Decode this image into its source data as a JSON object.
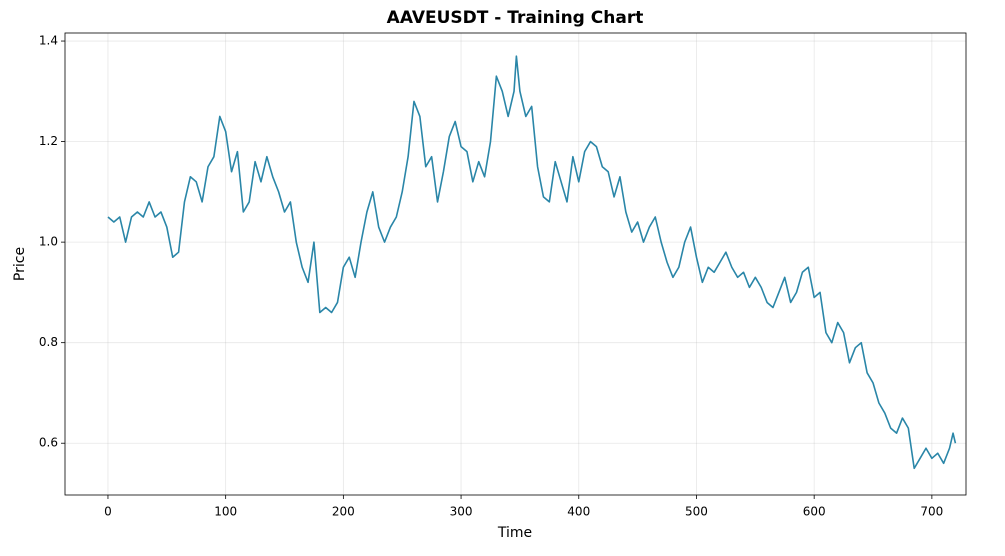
{
  "chart_data": {
    "type": "line",
    "title": "AAVEUSDT - Training Chart",
    "x_label": "Time",
    "y_label": "Price",
    "x": [
      0,
      5,
      10,
      15,
      20,
      25,
      30,
      35,
      40,
      45,
      50,
      55,
      60,
      65,
      70,
      75,
      80,
      85,
      90,
      95,
      100,
      105,
      110,
      115,
      120,
      125,
      130,
      135,
      140,
      145,
      150,
      155,
      160,
      165,
      170,
      175,
      180,
      185,
      190,
      195,
      200,
      205,
      210,
      215,
      220,
      225,
      230,
      235,
      240,
      245,
      250,
      255,
      260,
      265,
      270,
      275,
      280,
      285,
      290,
      295,
      300,
      305,
      310,
      315,
      320,
      325,
      330,
      335,
      340,
      345,
      347,
      350,
      355,
      360,
      365,
      370,
      375,
      380,
      385,
      390,
      395,
      400,
      405,
      410,
      415,
      420,
      425,
      430,
      435,
      440,
      445,
      450,
      455,
      460,
      465,
      470,
      475,
      480,
      485,
      490,
      495,
      500,
      505,
      510,
      515,
      520,
      525,
      530,
      535,
      540,
      545,
      550,
      555,
      560,
      565,
      570,
      575,
      580,
      585,
      590,
      595,
      600,
      605,
      610,
      615,
      620,
      625,
      630,
      635,
      640,
      645,
      650,
      655,
      660,
      665,
      670,
      675,
      680,
      685,
      690,
      695,
      700,
      705,
      710,
      715,
      718,
      720
    ],
    "series": [
      {
        "name": "AAVEUSDT",
        "color": "#2a86a8",
        "values": [
          1.05,
          1.04,
          1.05,
          1.0,
          1.05,
          1.06,
          1.05,
          1.08,
          1.05,
          1.06,
          1.03,
          0.97,
          0.98,
          1.08,
          1.13,
          1.12,
          1.08,
          1.15,
          1.17,
          1.25,
          1.22,
          1.14,
          1.18,
          1.06,
          1.08,
          1.16,
          1.12,
          1.17,
          1.13,
          1.1,
          1.06,
          1.08,
          1.0,
          0.95,
          0.92,
          1.0,
          0.86,
          0.87,
          0.86,
          0.88,
          0.95,
          0.97,
          0.93,
          1.0,
          1.06,
          1.1,
          1.03,
          1.0,
          1.03,
          1.05,
          1.1,
          1.17,
          1.28,
          1.25,
          1.15,
          1.17,
          1.08,
          1.14,
          1.21,
          1.24,
          1.19,
          1.18,
          1.12,
          1.16,
          1.13,
          1.2,
          1.33,
          1.3,
          1.25,
          1.3,
          1.37,
          1.3,
          1.25,
          1.27,
          1.15,
          1.09,
          1.08,
          1.16,
          1.12,
          1.08,
          1.17,
          1.12,
          1.18,
          1.2,
          1.19,
          1.15,
          1.14,
          1.09,
          1.13,
          1.06,
          1.02,
          1.04,
          1.0,
          1.03,
          1.05,
          1.0,
          0.96,
          0.93,
          0.95,
          1.0,
          1.03,
          0.97,
          0.92,
          0.95,
          0.94,
          0.96,
          0.98,
          0.95,
          0.93,
          0.94,
          0.91,
          0.93,
          0.91,
          0.88,
          0.87,
          0.9,
          0.93,
          0.88,
          0.9,
          0.94,
          0.95,
          0.89,
          0.9,
          0.82,
          0.8,
          0.84,
          0.82,
          0.76,
          0.79,
          0.8,
          0.74,
          0.72,
          0.68,
          0.66,
          0.63,
          0.62,
          0.65,
          0.63,
          0.55,
          0.57,
          0.59,
          0.57,
          0.58,
          0.56,
          0.59,
          0.62,
          0.6
        ]
      }
    ],
    "xlim": [
      -36.5,
      729
    ],
    "ylim": [
      0.497,
      1.416
    ],
    "xticks": [
      0,
      100,
      200,
      300,
      400,
      500,
      600,
      700
    ],
    "yticks": [
      0.6,
      0.8,
      {
        "value": 1,
        "label": "1.0"
      },
      1.2,
      1.4
    ],
    "grid": true
  }
}
